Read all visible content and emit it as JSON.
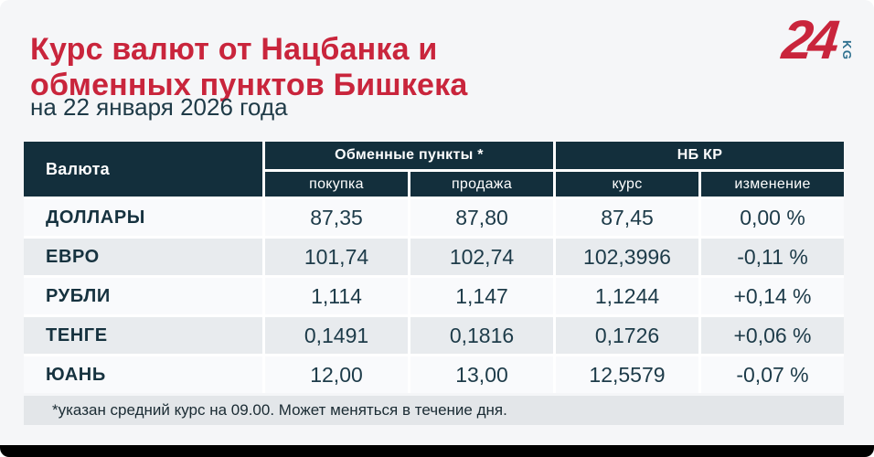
{
  "page": {
    "title_line1": "Курс валют от Нацбанка и",
    "title_line2": "обменных пунктов Бишкека",
    "subtitle": "на 22 января 2026 года",
    "footnote": "*указан средний курс на 09.00. Может меняться в течение дня."
  },
  "logo": {
    "number": "24",
    "suffix": "KG"
  },
  "colors": {
    "accent_red": "#c9253c",
    "header_dark": "#132f3c",
    "row_alt": "#e8ebee",
    "footnote_bg": "#e3e6e9",
    "page_bg": "#f5f6f8",
    "logo_teal": "#2d6f8e"
  },
  "table": {
    "currency_header": "Валюта",
    "groups": [
      {
        "label": "Обменные пункты *"
      },
      {
        "label": "НБ КР"
      }
    ],
    "subheaders": [
      "покупка",
      "продажа",
      "курс",
      "изменение"
    ],
    "rows": [
      {
        "currency": "ДОЛЛАРЫ",
        "buy": "87,35",
        "sell": "87,80",
        "rate": "87,45",
        "change": "0,00 %"
      },
      {
        "currency": "ЕВРО",
        "buy": "101,74",
        "sell": "102,74",
        "rate": "102,3996",
        "change": "-0,11 %"
      },
      {
        "currency": "РУБЛИ",
        "buy": "1,114",
        "sell": "1,147",
        "rate": "1,1244",
        "change": "+0,14 %"
      },
      {
        "currency": "ТЕНГЕ",
        "buy": "0,1491",
        "sell": "0,1816",
        "rate": "0,1726",
        "change": "+0,06 %"
      },
      {
        "currency": "ЮАНЬ",
        "buy": "12,00",
        "sell": "13,00",
        "rate": "12,5579",
        "change": "-0,07 %"
      }
    ]
  },
  "chart_data": {
    "type": "table",
    "title": "Курс валют от Нацбанка и обменных пунктов Бишкека",
    "subtitle": "на 22 января 2026 года",
    "column_groups": [
      {
        "label": "Обменные пункты *",
        "columns": [
          "покупка",
          "продажа"
        ]
      },
      {
        "label": "НБ КР",
        "columns": [
          "курс",
          "изменение"
        ]
      }
    ],
    "columns": [
      "Валюта",
      "покупка",
      "продажа",
      "курс",
      "изменение"
    ],
    "rows": [
      [
        "ДОЛЛАРЫ",
        "87,35",
        "87,80",
        "87,45",
        "0,00 %"
      ],
      [
        "ЕВРО",
        "101,74",
        "102,74",
        "102,3996",
        "-0,11 %"
      ],
      [
        "РУБЛИ",
        "1,114",
        "1,147",
        "1,1244",
        "+0,14 %"
      ],
      [
        "ТЕНГЕ",
        "0,1491",
        "0,1816",
        "0,1726",
        "+0,06 %"
      ],
      [
        "ЮАНЬ",
        "12,00",
        "13,00",
        "12,5579",
        "-0,07 %"
      ]
    ],
    "footnote": "*указан средний курс на 09.00. Может меняться в течение дня."
  }
}
